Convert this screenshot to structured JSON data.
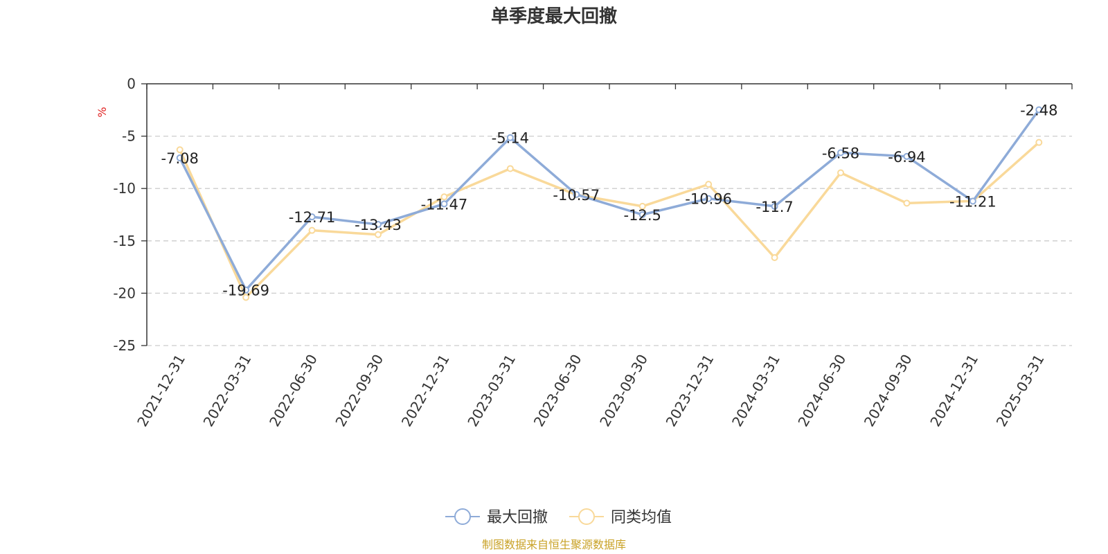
{
  "chart_data": {
    "type": "line",
    "title": "单季度最大回撤",
    "ylabel": "%",
    "xlabel": "",
    "ylim": [
      -25,
      0
    ],
    "yticks": [
      0,
      -5,
      -10,
      -15,
      -20,
      -25
    ],
    "grid": true,
    "legend_position": "bottom",
    "categories": [
      "2021-12-31",
      "2022-03-31",
      "2022-06-30",
      "2022-09-30",
      "2022-12-31",
      "2023-03-31",
      "2023-06-30",
      "2023-09-30",
      "2023-12-31",
      "2024-03-31",
      "2024-06-30",
      "2024-09-30",
      "2024-12-31",
      "2025-03-31"
    ],
    "series": [
      {
        "name": "最大回撤",
        "color": "#8eabd8",
        "values": [
          -7.08,
          -19.69,
          -12.71,
          -13.43,
          -11.47,
          -5.14,
          -10.57,
          -12.5,
          -10.96,
          -11.7,
          -6.58,
          -6.94,
          -11.21,
          -2.48
        ],
        "labels": [
          "-7.08",
          "-19.69",
          "-12.71",
          "-13.43",
          "-11.47",
          "-5.14",
          "-10.57",
          "-12.5",
          "-10.96",
          "-11.7",
          "-6.58",
          "-6.94",
          "-11.21",
          "-2.48"
        ]
      },
      {
        "name": "同类均值",
        "color": "#f9d99a",
        "values": [
          -6.3,
          -20.4,
          -14.0,
          -14.4,
          -10.8,
          -8.1,
          -10.6,
          -11.7,
          -9.6,
          -16.6,
          -8.5,
          -11.4,
          -11.2,
          -5.6
        ]
      }
    ],
    "source": "制图数据来自恒生聚源数据库"
  }
}
